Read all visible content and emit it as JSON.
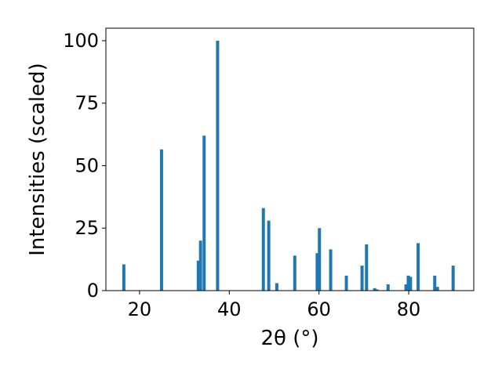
{
  "chart_data": {
    "type": "bar",
    "title": "",
    "xlabel": "2θ (°)",
    "ylabel": "Intensities (scaled)",
    "xlim": [
      12.5,
      94.5
    ],
    "ylim": [
      0,
      105
    ],
    "grid": false,
    "bar_color": "#1f77b4",
    "x_ticks": [
      20,
      40,
      60,
      80
    ],
    "y_ticks": [
      0,
      25,
      50,
      75,
      100
    ],
    "x": [
      16.5,
      24.9,
      33.1,
      33.6,
      34.4,
      37.4,
      47.6,
      48.8,
      50.6,
      54.6,
      59.6,
      60.1,
      62.6,
      66.1,
      69.6,
      70.6,
      72.4,
      72.9,
      75.4,
      79.4,
      79.9,
      80.4,
      82.1,
      85.8,
      86.4,
      89.9
    ],
    "values": [
      10.5,
      56.5,
      12,
      20,
      62,
      100,
      33,
      28,
      3,
      14,
      15,
      25,
      16.5,
      6,
      10,
      18.5,
      1,
      0.5,
      2.5,
      2.5,
      6,
      5.5,
      19,
      6,
      1.5,
      10
    ]
  }
}
